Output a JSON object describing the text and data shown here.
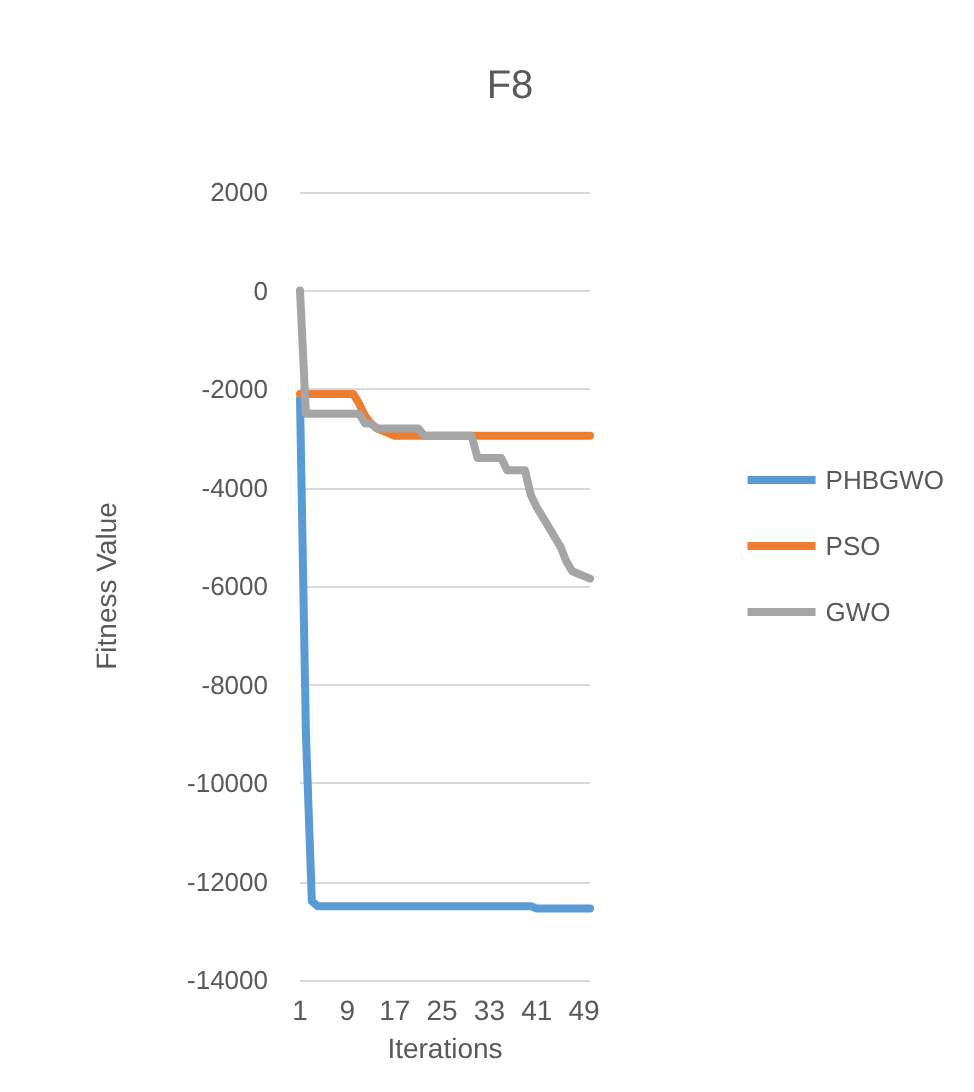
{
  "chart_data": {
    "type": "line",
    "title": "F8",
    "xlabel": "Iterations",
    "ylabel": "Fitness Value",
    "categories": [
      "1",
      null,
      null,
      null,
      null,
      null,
      null,
      null,
      "9",
      null,
      null,
      null,
      null,
      null,
      null,
      null,
      "17",
      null,
      null,
      null,
      null,
      null,
      null,
      null,
      "25",
      null,
      null,
      null,
      null,
      null,
      null,
      null,
      "33",
      null,
      null,
      null,
      null,
      null,
      null,
      null,
      "41",
      null,
      null,
      null,
      null,
      null,
      null,
      null,
      "49",
      null
    ],
    "series": [
      {
        "name": "PHBGWO",
        "color": "#5b9bd5",
        "values": [
          -2200,
          -9000,
          -12400,
          -12500,
          -12500,
          -12500,
          -12500,
          -12500,
          -12500,
          -12500,
          -12500,
          -12500,
          -12500,
          -12500,
          -12500,
          -12500,
          -12500,
          -12500,
          -12500,
          -12500,
          -12500,
          -12500,
          -12500,
          -12500,
          -12500,
          -12500,
          -12500,
          -12500,
          -12500,
          -12500,
          -12500,
          -12500,
          -12500,
          -12500,
          -12500,
          -12500,
          -12500,
          -12500,
          -12500,
          -12500,
          -12550,
          -12550,
          -12550,
          -12550,
          -12550,
          -12550,
          -12550,
          -12550,
          -12550,
          -12550
        ]
      },
      {
        "name": "PSO",
        "color": "#ed7d31",
        "values": [
          -2100,
          -2100,
          -2100,
          -2100,
          -2100,
          -2100,
          -2100,
          -2100,
          -2100,
          -2100,
          -2300,
          -2550,
          -2700,
          -2800,
          -2850,
          -2900,
          -2950,
          -2950,
          -2950,
          -2950,
          -2950,
          -2950,
          -2950,
          -2950,
          -2950,
          -2950,
          -2950,
          -2950,
          -2950,
          -2950,
          -2950,
          -2950,
          -2950,
          -2950,
          -2950,
          -2950,
          -2950,
          -2950,
          -2950,
          -2950,
          -2950,
          -2950,
          -2950,
          -2950,
          -2950,
          -2950,
          -2950,
          -2950,
          -2950,
          -2950
        ]
      },
      {
        "name": "GWO",
        "color": "#a5a5a5",
        "values": [
          0,
          -2500,
          -2500,
          -2500,
          -2500,
          -2500,
          -2500,
          -2500,
          -2500,
          -2500,
          -2500,
          -2700,
          -2700,
          -2800,
          -2800,
          -2800,
          -2800,
          -2800,
          -2800,
          -2800,
          -2800,
          -2950,
          -2950,
          -2950,
          -2950,
          -2950,
          -2950,
          -2950,
          -2950,
          -2950,
          -3400,
          -3400,
          -3400,
          -3400,
          -3400,
          -3650,
          -3650,
          -3650,
          -3650,
          -4150,
          -4400,
          -4600,
          -4800,
          -5000,
          -5200,
          -5500,
          -5700,
          -5750,
          -5800,
          -5850
        ]
      }
    ],
    "ylim": [
      -14000,
      2000
    ],
    "yticks": [
      -14000,
      -12000,
      -10000,
      -8000,
      -6000,
      -4000,
      -2000,
      0,
      2000
    ],
    "grid": "y",
    "legend": "right",
    "marker": "none",
    "line_style": "solid"
  }
}
